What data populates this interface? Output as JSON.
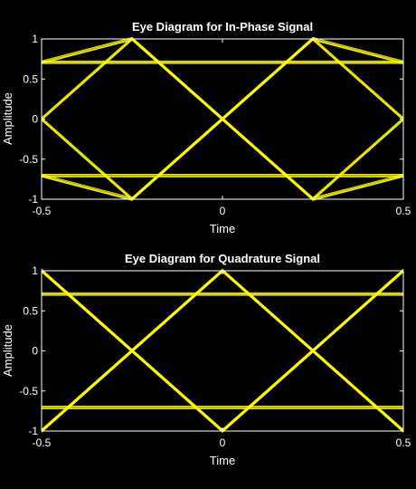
{
  "colors": {
    "background": "#000000",
    "axes": "#ffffff",
    "trace": "#ffff00"
  },
  "chart_data": [
    {
      "type": "line",
      "title": "Eye Diagram for In-Phase Signal",
      "xlabel": "Time",
      "ylabel": "Amplitude",
      "xlim": [
        -0.5,
        0.5
      ],
      "ylim": [
        -1,
        1
      ],
      "xticks": [
        -0.5,
        0,
        0.5
      ],
      "xtick_labels": [
        "-0.5",
        "0",
        "0.5"
      ],
      "yticks": [
        -1,
        -0.5,
        0,
        0.5,
        1
      ],
      "ytick_labels": [
        "-1",
        "-0.5",
        "0",
        "0.5",
        "1"
      ],
      "grid": false,
      "eye_crossings": [
        -0.5,
        0,
        0.5
      ],
      "levels": [
        0.7071,
        1,
        -0.7071,
        -1,
        0
      ],
      "series": [
        {
          "x": [
            -0.5,
            -0.25,
            0,
            0.25,
            0.5
          ],
          "values": [
            0.7071,
            0.7071,
            0.7071,
            0.7071,
            0.7071
          ]
        },
        {
          "x": [
            -0.5,
            -0.25,
            0,
            0.25,
            0.5
          ],
          "values": [
            -0.7071,
            -0.7071,
            -0.7071,
            -0.7071,
            -0.7071
          ]
        },
        {
          "x": [
            -0.5,
            -0.25,
            0,
            0.25,
            0.5
          ],
          "values": [
            0,
            1,
            0,
            1,
            0
          ]
        },
        {
          "x": [
            -0.5,
            -0.25,
            0,
            0.25,
            0.5
          ],
          "values": [
            0,
            -1,
            0,
            -1,
            0
          ]
        },
        {
          "x": [
            -0.5,
            -0.25,
            0,
            0.25,
            0.5
          ],
          "values": [
            0.7071,
            1,
            0,
            -1,
            -0.7071
          ]
        },
        {
          "x": [
            -0.5,
            -0.25,
            0,
            0.25,
            0.5
          ],
          "values": [
            -0.7071,
            -1,
            0,
            1,
            0.7071
          ]
        }
      ]
    },
    {
      "type": "line",
      "title": "Eye Diagram for Quadrature Signal",
      "xlabel": "Time",
      "ylabel": "Amplitude",
      "xlim": [
        -0.5,
        0.5
      ],
      "ylim": [
        -1,
        1
      ],
      "xticks": [
        -0.5,
        0,
        0.5
      ],
      "xtick_labels": [
        "-0.5",
        "0",
        "0.5"
      ],
      "yticks": [
        -1,
        -0.5,
        0,
        0.5,
        1
      ],
      "ytick_labels": [
        "-1",
        "-0.5",
        "0",
        "0.5",
        "1"
      ],
      "grid": false,
      "eye_crossings": [
        -0.25,
        0.25
      ],
      "levels": [
        0.7071,
        1,
        -0.7071,
        -1,
        0
      ],
      "series": [
        {
          "x": [
            -0.5,
            -0.25,
            0,
            0.25,
            0.5
          ],
          "values": [
            0.7071,
            0.7071,
            0.7071,
            0.7071,
            0.7071
          ]
        },
        {
          "x": [
            -0.5,
            -0.25,
            0,
            0.25,
            0.5
          ],
          "values": [
            -0.7071,
            -0.7071,
            -0.7071,
            -0.7071,
            -0.7071
          ]
        },
        {
          "x": [
            -0.5,
            -0.25,
            0,
            0.25,
            0.5
          ],
          "values": [
            1,
            0,
            -1,
            0,
            1
          ]
        },
        {
          "x": [
            -0.5,
            -0.25,
            0,
            0.25,
            0.5
          ],
          "values": [
            -1,
            0,
            1,
            0,
            -1
          ]
        },
        {
          "x": [
            -0.5,
            -0.25,
            0,
            0.25,
            0.5
          ],
          "values": [
            1,
            0,
            -1,
            0,
            1
          ]
        },
        {
          "x": [
            -0.5,
            -0.25,
            0,
            0.25,
            0.5
          ],
          "values": [
            -1,
            0,
            1,
            0,
            -1
          ]
        }
      ]
    }
  ]
}
